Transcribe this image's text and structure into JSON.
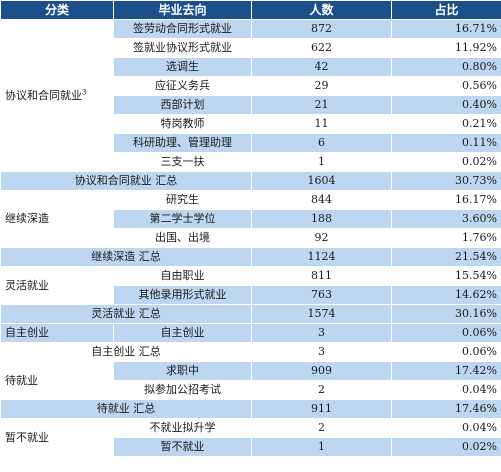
{
  "header": {
    "category": "分类",
    "destination": "毕业去向",
    "count": "人数",
    "ratio": "占比"
  },
  "groups": {
    "agreement": {
      "label": "协议和合同就业",
      "sup": "3",
      "rows": [
        {
          "dest": "签劳动合同形式就业",
          "count": "872",
          "ratio": "16.71%"
        },
        {
          "dest": "签就业协议形式就业",
          "count": "622",
          "ratio": "11.92%"
        },
        {
          "dest": "选调生",
          "count": "42",
          "ratio": "0.80%"
        },
        {
          "dest": "应征义务兵",
          "count": "29",
          "ratio": "0.56%"
        },
        {
          "dest": "西部计划",
          "count": "21",
          "ratio": "0.40%"
        },
        {
          "dest": "特岗教师",
          "count": "11",
          "ratio": "0.21%"
        },
        {
          "dest": "科研助理、管理助理",
          "count": "6",
          "ratio": "0.11%"
        },
        {
          "dest": "三支一扶",
          "count": "1",
          "ratio": "0.02%"
        }
      ],
      "summary": {
        "label": "协议和合同就业 汇总",
        "count": "1604",
        "ratio": "30.73%"
      }
    },
    "study": {
      "label": "继续深造",
      "rows": [
        {
          "dest": "研究生",
          "count": "844",
          "ratio": "16.17%"
        },
        {
          "dest": "第二学士学位",
          "count": "188",
          "ratio": "3.60%"
        },
        {
          "dest": "出国、出境",
          "count": "92",
          "ratio": "1.76%"
        }
      ],
      "summary": {
        "label": "继续深造 汇总",
        "count": "1124",
        "ratio": "21.54%"
      }
    },
    "flexible": {
      "label": "灵活就业",
      "rows": [
        {
          "dest": "自由职业",
          "count": "811",
          "ratio": "15.54%"
        },
        {
          "dest": "其他录用形式就业",
          "count": "763",
          "ratio": "14.62%"
        }
      ],
      "summary": {
        "label": "灵活就业 汇总",
        "count": "1574",
        "ratio": "30.16%"
      }
    },
    "startup": {
      "label": "自主创业",
      "rows": [
        {
          "dest": "自主创业",
          "count": "3",
          "ratio": "0.06%"
        }
      ],
      "summary": {
        "label": "自主创业 汇总",
        "count": "3",
        "ratio": "0.06%"
      }
    },
    "waiting": {
      "label": "待就业",
      "rows": [
        {
          "dest": "求职中",
          "count": "909",
          "ratio": "17.42%"
        },
        {
          "dest": "拟参加公招考试",
          "count": "2",
          "ratio": "0.04%"
        }
      ],
      "summary": {
        "label": "待就业 汇总",
        "count": "911",
        "ratio": "17.46%"
      }
    },
    "notyet": {
      "label": "暂不就业",
      "rows": [
        {
          "dest": "不就业拟升学",
          "count": "2",
          "ratio": "0.04%"
        },
        {
          "dest": "暂不就业",
          "count": "1",
          "ratio": "0.02%"
        }
      ]
    }
  },
  "colors": {
    "header_bg": "#1d4f8b",
    "row_blue": "#bcd7ef",
    "row_white": "#ffffff"
  }
}
